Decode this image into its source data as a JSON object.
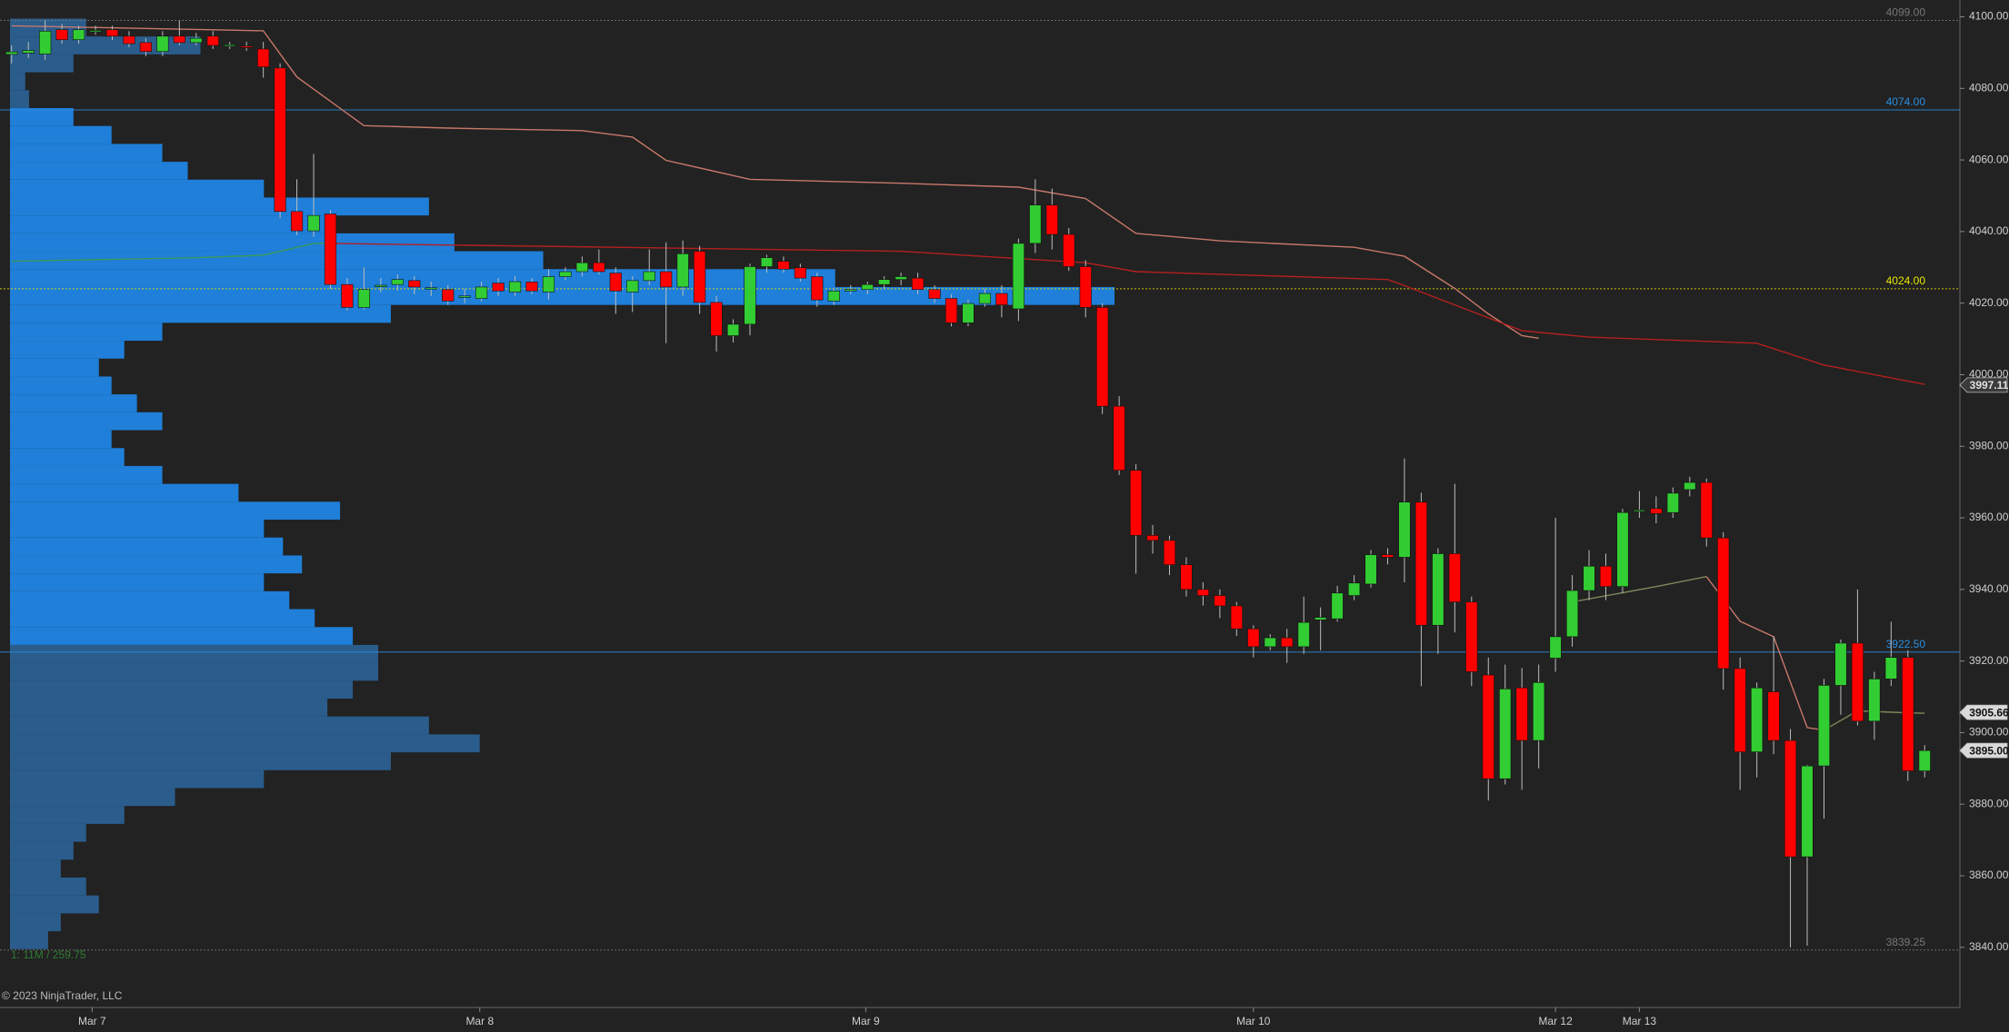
{
  "chart_data": {
    "type": "candlestick",
    "up_color": "#32cd32",
    "down_color": "#ff0000",
    "wick_color": "#bdbdbd",
    "xlim": [
      -0.69,
      116.1
    ],
    "xticks": [
      {
        "value": 4.8,
        "label": "Mar 7"
      },
      {
        "value": 27.9,
        "label": "Mar 8"
      },
      {
        "value": 50.9,
        "label": "Mar 9"
      },
      {
        "value": 74.0,
        "label": "Mar 10"
      },
      {
        "value": 92.0,
        "label": "Mar 12"
      },
      {
        "value": 97.0,
        "label": "Mar 13"
      }
    ],
    "ylim": [
      3823.2,
      4104.7
    ],
    "yticks": [
      {
        "value": 3840,
        "label": "3840.00"
      },
      {
        "value": 3860,
        "label": "3860.00"
      },
      {
        "value": 3880,
        "label": "3880.00"
      },
      {
        "value": 3900,
        "label": "3900.00"
      },
      {
        "value": 3920,
        "label": "3920.00"
      },
      {
        "value": 3940,
        "label": "3940.00"
      },
      {
        "value": 3960,
        "label": "3960.00"
      },
      {
        "value": 3980,
        "label": "3980.00"
      },
      {
        "value": 4000,
        "label": "4000.00"
      },
      {
        "value": 4020,
        "label": "4020.00"
      },
      {
        "value": 4040,
        "label": "4040.00"
      },
      {
        "value": 4060,
        "label": "4060.00"
      },
      {
        "value": 4080,
        "label": "4080.00"
      },
      {
        "value": 4100,
        "label": "4100.00"
      }
    ],
    "open": [
      4089.5,
      4089.9,
      4089.6,
      4096.4,
      4093.6,
      4096.0,
      4096.4,
      4094.6,
      4092.8,
      4090.3,
      4094.6,
      4092.8,
      4094.6,
      4092.0,
      4091.8,
      4091.0,
      4085.7,
      4045.6,
      4040.2,
      4044.9,
      4025.2,
      4018.8,
      4024.6,
      4025.2,
      4026.3,
      4024.0,
      4023.8,
      4021.8,
      4021.3,
      4025.6,
      4023.1,
      4025.9,
      4023.1,
      4027.4,
      4028.8,
      4031.3,
      4028.4,
      4023.1,
      4026.3,
      4028.8,
      4024.5,
      4034.5,
      4020.2,
      4010.9,
      4014.1,
      4030.2,
      4031.7,
      4029.9,
      4027.4,
      4020.6,
      4023.6,
      4023.8,
      4025.2,
      4026.6,
      4027.0,
      4023.8,
      4021.3,
      4014.5,
      4019.9,
      4022.7,
      4018.4,
      4036.7,
      4047.4,
      4039.2,
      4030.2,
      4018.8,
      3991.2,
      3973.3,
      3955.1,
      3953.7,
      3946.9,
      3940.0,
      3938.3,
      3935.4,
      3929.0,
      3924.0,
      3926.5,
      3924.0,
      3931.5,
      3931.8,
      3938.3,
      3941.5,
      3949.7,
      3949.0,
      3964.4,
      3930.0,
      3950.0,
      3936.5,
      3916.1,
      3887.1,
      3912.5,
      3897.8,
      3920.8,
      3926.8,
      3939.7,
      3946.5,
      3940.8,
      3962.0,
      3962.6,
      3961.5,
      3967.9,
      3969.9,
      3954.4,
      3917.9,
      3894.6,
      3911.4,
      3897.8,
      3865.3,
      3890.7,
      3913.2,
      3925.0,
      3903.2,
      3915.0,
      3921.0,
      3889.3
    ],
    "high": [
      4092,
      4093,
      4099,
      4098,
      4097.5,
      4097.5,
      4097.5,
      4096,
      4094,
      4096,
      4099,
      4095.5,
      4096,
      4093,
      4093,
      4093,
      4087,
      4054.6,
      4061.7,
      4046,
      4027,
      4030,
      4027,
      4028,
      4027.5,
      4026,
      4025,
      4024,
      4026,
      4027,
      4027.5,
      4027,
      4029.5,
      4030,
      4033,
      4035,
      4030,
      4027.5,
      4035,
      4037,
      4037.5,
      4036,
      4022,
      4015.5,
      4031,
      4033.5,
      4033,
      4031,
      4028.5,
      4024,
      4025,
      4026,
      4027.5,
      4028.5,
      4028.5,
      4025,
      4022.5,
      4021,
      4024,
      4025,
      4038,
      4054.6,
      4052,
      4041,
      4032,
      4020,
      3994,
      3975,
      3958,
      3955,
      3949,
      3942,
      3940,
      3936.5,
      3930,
      3927.5,
      3929,
      3938,
      3935,
      3941,
      3944,
      3951,
      3951.5,
      3976.6,
      3967,
      3951.5,
      3969.5,
      3938,
      3921,
      3919,
      3918,
      3919,
      3960,
      3944,
      3951,
      3950,
      3962.5,
      3967.5,
      3966,
      3968.5,
      3971.5,
      3971,
      3956,
      3921,
      3914,
      3927,
      3901,
      3891,
      3915,
      3926,
      3940,
      3917,
      3931,
      3923,
      3896.5
    ],
    "low": [
      4087,
      4088.5,
      4088,
      4092.5,
      4092.5,
      4095,
      4093.5,
      4091.5,
      4089,
      4089,
      4092,
      4092,
      4091,
      4091,
      4090.5,
      4083,
      4043.8,
      4039,
      4038.5,
      4024,
      4018,
      4018.2,
      4023,
      4023.5,
      4022.5,
      4022,
      4019.5,
      4020,
      4020.5,
      4022,
      4022,
      4022.5,
      4021,
      4026.5,
      4027.5,
      4028,
      4017,
      4017.5,
      4025,
      4008.8,
      4022,
      4017,
      4006.5,
      4009,
      4011,
      4028.5,
      4028.5,
      4026,
      4019,
      4019.5,
      4022.5,
      4022.5,
      4024,
      4025,
      4022.5,
      4020,
      4013.5,
      4013.5,
      4019,
      4016,
      4015,
      4034,
      4035,
      4029,
      4016,
      3989,
      3972,
      3944.4,
      3950,
      3944,
      3938,
      3935.5,
      3932,
      3927,
      3921,
      3923,
      3919.5,
      3922,
      3923,
      3931,
      3937,
      3940.5,
      3947,
      3942,
      3913,
      3922,
      3928,
      3913,
      3881,
      3885.5,
      3884,
      3890,
      3917,
      3924,
      3937,
      3937,
      3939,
      3960,
      3958.5,
      3960,
      3966,
      3952,
      3912,
      3884,
      3887.5,
      3894,
      3840,
      3840.5,
      3876,
      3905,
      3902,
      3898,
      3913,
      3886.5,
      3887.5
    ],
    "close": [
      4090.2,
      4090.6,
      4096.0,
      4093.6,
      4096.4,
      4096.2,
      4094.6,
      4092.5,
      4090.3,
      4094.6,
      4092.8,
      4094.0,
      4092.0,
      4092.2,
      4091.6,
      4086.0,
      4045.6,
      4040.2,
      4044.5,
      4025.2,
      4018.8,
      4023.8,
      4025.0,
      4026.6,
      4024.5,
      4024.3,
      4020.6,
      4022.0,
      4024.5,
      4023.4,
      4026.0,
      4023.4,
      4027.4,
      4028.8,
      4031.3,
      4028.8,
      4023.4,
      4026.3,
      4028.8,
      4024.5,
      4033.8,
      4020.2,
      4010.9,
      4014.1,
      4030.2,
      4032.7,
      4029.5,
      4027.0,
      4020.9,
      4023.4,
      4023.8,
      4025.2,
      4026.6,
      4027.4,
      4023.8,
      4021.3,
      4014.5,
      4019.9,
      4022.7,
      4019.5,
      4036.7,
      4047.4,
      4039.2,
      4030.2,
      4018.8,
      3991.2,
      3973.3,
      3955.1,
      3953.7,
      3946.9,
      3940.0,
      3938.3,
      3935.4,
      3929.0,
      3924.0,
      3926.5,
      3924.0,
      3930.8,
      3932.2,
      3939.0,
      3941.8,
      3949.7,
      3949.0,
      3964.4,
      3930.0,
      3950.0,
      3936.5,
      3917.0,
      3887.1,
      3912.2,
      3897.8,
      3914.0,
      3926.8,
      3939.7,
      3946.5,
      3940.8,
      3961.5,
      3962.2,
      3961.2,
      3966.9,
      3969.9,
      3954.4,
      3917.9,
      3894.6,
      3912.5,
      3897.8,
      3865.3,
      3890.7,
      3913.2,
      3925.0,
      3903.2,
      3915.0,
      3921.0,
      3889.3,
      3895.0
    ],
    "lines": [
      {
        "color": "#c8786a",
        "x": [
          0,
          15,
          17,
          21,
          26,
          34,
          37,
          39,
          44,
          53,
          60,
          64,
          67,
          72,
          80,
          83,
          86,
          88,
          90,
          91
        ],
        "values": [
          4097.5,
          4096.1,
          4083.2,
          4069.6,
          4068.9,
          4068.2,
          4066.4,
          4059.9,
          4054.6,
          4053.5,
          4052.4,
          4049.2,
          4039.5,
          4037.4,
          4035.6,
          4033.1,
          4024.1,
          4017.0,
          4010.9,
          4010.2
        ]
      },
      {
        "color": "#b32020",
        "x": [
          19,
          36,
          53,
          64,
          67,
          82,
          83,
          90,
          94,
          104,
          108,
          114
        ],
        "values": [
          4036.7,
          4035.6,
          4034.5,
          4031.3,
          4028.8,
          4026.6,
          4024.9,
          4012.3,
          4010.5,
          4008.8,
          4002.7,
          3997.3
        ]
      },
      {
        "color": "#3a9a5a",
        "x": [
          0,
          11,
          15,
          18,
          19
        ],
        "values": [
          4031.7,
          4032.7,
          4033.4,
          4036.7,
          4036.7
        ]
      },
      {
        "color": "#7a8a5a",
        "x": [
          93,
          98,
          101
        ],
        "values": [
          3936.5,
          3940.8,
          3943.6
        ]
      },
      {
        "color": "#c8786a",
        "x": [
          101,
          103,
          105,
          107,
          108
        ],
        "values": [
          3943.6,
          3931.1,
          3926.8,
          3901.4,
          3900.7
        ]
      },
      {
        "color": "#7a8a5a",
        "x": [
          108,
          110,
          112,
          114
        ],
        "values": [
          3900.7,
          3906.1,
          3905.7,
          3905.4
        ]
      }
    ],
    "profile": {
      "color": "#1f7fd9",
      "outside_color": "#2a5d8c",
      "prices": [
        4097,
        4092,
        4087,
        4082,
        4077,
        4072,
        4067,
        4062,
        4057,
        4052,
        4047,
        4042,
        4037,
        4032,
        4027,
        4022,
        4017,
        4012,
        4007,
        4002,
        3997,
        3992,
        3987,
        3982,
        3977,
        3972,
        3967,
        3962,
        3957,
        3952,
        3947,
        3942,
        3937,
        3932,
        3927,
        3922,
        3917,
        3912,
        3907,
        3902,
        3897,
        3892,
        3887,
        3882,
        3877,
        3872,
        3867,
        3862,
        3857,
        3852,
        3847,
        3842
      ],
      "volumes": [
        60,
        150,
        50,
        12,
        15,
        50,
        80,
        120,
        140,
        200,
        330,
        250,
        350,
        420,
        650,
        870,
        300,
        120,
        90,
        70,
        80,
        100,
        120,
        80,
        90,
        120,
        180,
        260,
        200,
        215,
        230,
        200,
        220,
        240,
        270,
        290,
        290,
        270,
        250,
        330,
        370,
        300,
        200,
        130,
        90,
        60,
        50,
        40,
        60,
        70,
        40,
        30
      ]
    },
    "levels": [
      {
        "value": 4099,
        "label": "4099.00",
        "color": "#777777"
      },
      {
        "value": 4074,
        "label": "4074.00",
        "color": "#2a8fe0"
      },
      {
        "value": 4024,
        "label": "4024.00",
        "color": "#e6e600"
      },
      {
        "value": 3922.5,
        "label": "3922.50",
        "color": "#2a8fe0"
      },
      {
        "value": 3839.25,
        "label": "3839.25",
        "color": "#777777"
      }
    ],
    "markers": [
      {
        "value": 3997.11,
        "label": "3997.11"
      },
      {
        "value": 3905.66,
        "label": "3905.66"
      },
      {
        "value": 3895.0,
        "label": "3895.00"
      }
    ],
    "stats_text": "1: 11M / 259.75",
    "copyright": "© 2023 NinjaTrader, LLC"
  }
}
